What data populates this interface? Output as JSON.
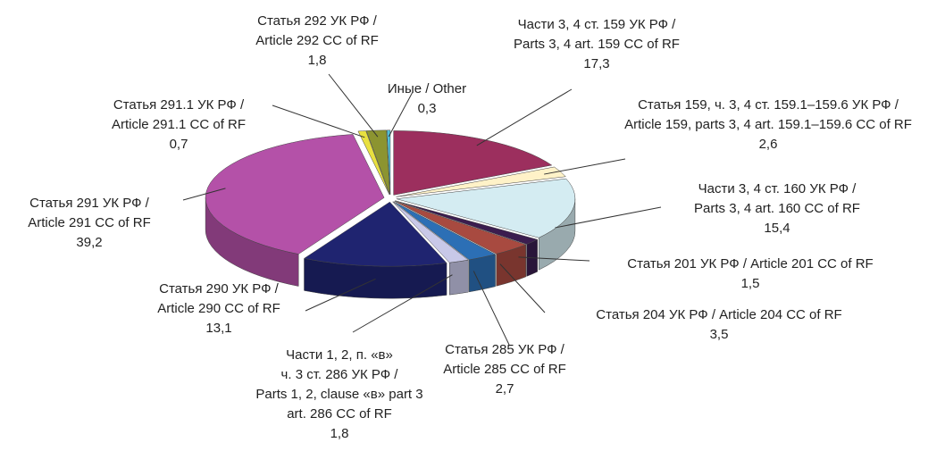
{
  "chart_data": {
    "type": "pie",
    "categories": [
      [
        "Части 3, 4 ст. 159 УК РФ /",
        "Parts 3, 4 art. 159 CC of RF"
      ],
      [
        "Статья 159, ч. 3, 4 ст. 159.1–159.6 УК РФ /",
        "Article 159, parts 3, 4 art. 159.1–159.6 CC of RF"
      ],
      [
        "Части 3, 4 ст. 160 УК РФ /",
        "Parts 3, 4 art. 160 CC of RF"
      ],
      [
        "Статья 201 УК РФ / Article 201 CC of RF"
      ],
      [
        "Статья 204 УК РФ / Article 204 CC of RF"
      ],
      [
        "Статья 285 УК РФ /",
        "Article 285 CC of RF"
      ],
      [
        "Части 1, 2, п. «в»",
        "ч. 3 ст. 286 УК РФ /",
        "Parts 1, 2, clause «в» part 3",
        "art. 286 CC of RF"
      ],
      [
        "Статья 290 УК РФ /",
        "Article 290 CC of RF"
      ],
      [
        "Статья 291 УК РФ /",
        "Article 291 CC of RF"
      ],
      [
        "Статья 291.1 УК РФ /",
        "Article 291.1 CC of RF"
      ],
      [
        "Статья 292 УК РФ /",
        "Article 292 CC of RF"
      ],
      [
        "Иные / Other"
      ]
    ],
    "values": [
      17.3,
      2.6,
      15.4,
      1.5,
      3.5,
      2.7,
      1.8,
      13.1,
      39.2,
      0.7,
      1.8,
      0.3
    ],
    "value_labels": [
      "17,3",
      "2,6",
      "15,4",
      "1,5",
      "3,5",
      "2,7",
      "1,8",
      "13,1",
      "39,2",
      "0,7",
      "1,8",
      "0,3"
    ],
    "colors": [
      "#9c2f5e",
      "#fff2c8",
      "#d4ecf2",
      "#3b1d4f",
      "#a84a40",
      "#2c6fb5",
      "#c8c8e8",
      "#1f2470",
      "#b451a8",
      "#e8e040",
      "#8c9430",
      "#52c0d8"
    ]
  }
}
